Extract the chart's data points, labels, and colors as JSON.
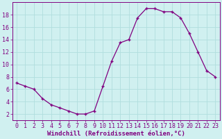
{
  "x": [
    0,
    1,
    2,
    3,
    4,
    5,
    6,
    7,
    8,
    9,
    10,
    11,
    12,
    13,
    14,
    15,
    16,
    17,
    18,
    19,
    20,
    21,
    22,
    23
  ],
  "y": [
    7.0,
    6.5,
    6.0,
    4.5,
    3.5,
    3.0,
    2.5,
    2.0,
    2.0,
    2.5,
    6.5,
    10.5,
    13.5,
    14.0,
    17.5,
    19.0,
    19.0,
    18.5,
    18.5,
    17.5,
    15.0,
    12.0,
    9.0,
    8.0
  ],
  "line_color": "#800080",
  "marker_color": "#800080",
  "bg_color": "#d0f0f0",
  "grid_color": "#b0dede",
  "axis_color": "#800080",
  "spine_color": "#800080",
  "xlabel": "Windchill (Refroidissement éolien,°C)",
  "xlim": [
    -0.5,
    23.5
  ],
  "ylim": [
    1.0,
    20.0
  ],
  "yticks": [
    2,
    4,
    6,
    8,
    10,
    12,
    14,
    16,
    18
  ],
  "xticks": [
    0,
    1,
    2,
    3,
    4,
    5,
    6,
    7,
    8,
    9,
    10,
    11,
    12,
    13,
    14,
    15,
    16,
    17,
    18,
    19,
    20,
    21,
    22,
    23
  ],
  "label_fontsize": 6.5,
  "tick_fontsize": 6
}
